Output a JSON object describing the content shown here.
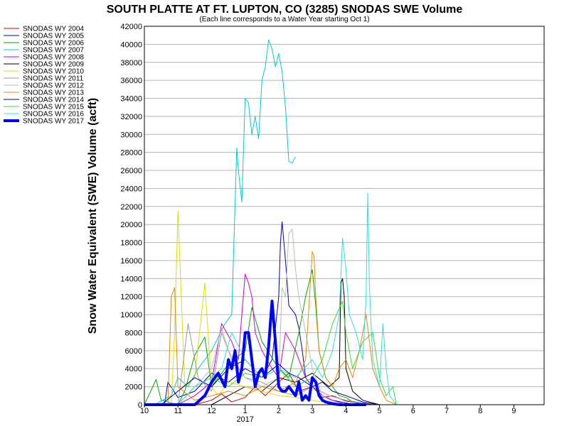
{
  "chart_data": {
    "type": "line",
    "title": "SOUTH PLATTE AT FT. LUPTON, CO (3285) SNODAS SWE Volume",
    "subtitle": "(Each line corresponds to a Water Year starting Oct 1)",
    "ylabel": "Snow Water Equivalent (SWE) Volume (acft)",
    "xlabel": "",
    "ylim": [
      0,
      42000
    ],
    "yticks": [
      0,
      2000,
      4000,
      6000,
      8000,
      10000,
      12000,
      14000,
      16000,
      18000,
      20000,
      22000,
      24000,
      26000,
      28000,
      30000,
      32000,
      34000,
      36000,
      38000,
      40000,
      42000
    ],
    "xlim": [
      10,
      21.9
    ],
    "x_unit": "month of water year (10=Oct ... 21=Sep)",
    "xticks": [
      {
        "value": 10,
        "label": "10"
      },
      {
        "value": 11,
        "label": "11"
      },
      {
        "value": 12,
        "label": "12"
      },
      {
        "value": 13,
        "label": "1"
      },
      {
        "value": 14,
        "label": "2"
      },
      {
        "value": 15,
        "label": "3"
      },
      {
        "value": 16,
        "label": "4"
      },
      {
        "value": 17,
        "label": "5"
      },
      {
        "value": 18,
        "label": "6"
      },
      {
        "value": 19,
        "label": "7"
      },
      {
        "value": 20,
        "label": "8"
      },
      {
        "value": 21,
        "label": "9"
      }
    ],
    "x_secondary_label": {
      "value": 13,
      "label": "2017"
    },
    "grid": true,
    "legend_position": "top-left",
    "series": [
      {
        "name": "SNODAS WY 2004",
        "color": "#cc0000",
        "width": 1,
        "x": [
          10.0,
          11.5,
          12.0,
          12.3,
          12.6,
          13.0,
          13.3,
          13.6,
          14.0,
          14.3,
          14.6,
          15.0,
          15.3,
          15.6,
          16.0,
          16.5,
          17.0
        ],
        "y": [
          0,
          0,
          500,
          1200,
          300,
          800,
          2000,
          1000,
          2500,
          3500,
          1500,
          2000,
          800,
          1000,
          400,
          100,
          0
        ]
      },
      {
        "name": "SNODAS WY 2005",
        "color": "#0000cc",
        "width": 1,
        "x": [
          10.0,
          10.6,
          10.7,
          11.0,
          11.5,
          12.0,
          12.5,
          13.0,
          13.5,
          13.8,
          14.0,
          14.05,
          14.1,
          14.2,
          14.3,
          14.5,
          14.6,
          14.7,
          14.8,
          15.0,
          15.3,
          15.6,
          16.0,
          16.3,
          17.0
        ],
        "y": [
          0,
          0,
          2500,
          800,
          1500,
          3500,
          2500,
          4000,
          3000,
          5000,
          12000,
          18000,
          20300,
          16000,
          11000,
          10000,
          8500,
          6000,
          3000,
          2000,
          1000,
          500,
          200,
          0,
          0
        ]
      },
      {
        "name": "SNODAS WY 2006",
        "color": "#00aa00",
        "width": 1,
        "x": [
          10.0,
          10.35,
          10.5,
          11.0,
          11.2,
          11.5,
          11.8,
          12.0,
          12.5,
          13.0,
          13.2,
          13.5,
          14.0,
          14.3,
          14.6,
          14.8,
          14.9,
          15.0,
          15.1,
          15.2,
          15.4,
          15.6,
          15.8,
          16.0,
          16.2,
          16.6,
          17.0
        ],
        "y": [
          0,
          2800,
          500,
          0,
          1500,
          5500,
          7500,
          2000,
          4500,
          6000,
          10800,
          7000,
          4000,
          3000,
          8000,
          12000,
          13500,
          15000,
          11000,
          6000,
          3000,
          2000,
          1000,
          800,
          300,
          0,
          0
        ]
      },
      {
        "name": "SNODAS WY 2007",
        "color": "#00cccc",
        "width": 1,
        "x": [
          10.0,
          10.3,
          10.8,
          11.0,
          11.3,
          11.6,
          12.0,
          12.4,
          12.6,
          12.75,
          12.8,
          12.9,
          13.0,
          13.1,
          13.2,
          13.3,
          13.4,
          13.5,
          13.6,
          13.7,
          13.8,
          13.9,
          14.0,
          14.1,
          14.2,
          14.3,
          14.4,
          14.5
        ],
        "y": [
          0,
          0,
          1000,
          3000,
          2000,
          4000,
          6000,
          9000,
          10000,
          28500,
          26000,
          22500,
          34000,
          33500,
          30000,
          32000,
          29500,
          36000,
          37500,
          40500,
          39500,
          37500,
          39000,
          37000,
          33000,
          27000,
          26800,
          27500
        ]
      },
      {
        "name": "SNODAS WY 2008",
        "color": "#cc00cc",
        "width": 1,
        "x": [
          10.0,
          11.0,
          11.5,
          12.0,
          12.3,
          12.6,
          12.8,
          12.9,
          13.0,
          13.1,
          13.2,
          13.3,
          13.5,
          13.8,
          14.0,
          14.2,
          14.5,
          14.8,
          15.0,
          15.3,
          15.6,
          16.0
        ],
        "y": [
          0,
          0,
          1000,
          2500,
          9000,
          7000,
          5000,
          10000,
          14500,
          13500,
          12000,
          8000,
          6000,
          4000,
          3000,
          8000,
          6000,
          3000,
          2000,
          1000,
          500,
          0
        ]
      },
      {
        "name": "SNODAS WY 2009",
        "color": "#000000",
        "width": 1,
        "x": [
          10.0,
          12.0,
          12.5,
          13.0,
          13.5,
          14.0,
          14.5,
          15.0,
          15.5,
          15.8,
          15.85,
          15.9,
          15.95,
          16.0,
          16.2,
          16.5,
          17.0
        ],
        "y": [
          0,
          0,
          1000,
          2000,
          1500,
          3000,
          2500,
          3500,
          2000,
          3000,
          13500,
          14000,
          12000,
          4000,
          1500,
          500,
          0
        ]
      },
      {
        "name": "SNODAS WY 2010",
        "color": "#dddd00",
        "width": 1,
        "x": [
          10.0,
          10.8,
          10.9,
          11.0,
          11.1,
          11.2,
          11.5,
          11.8,
          12.0,
          12.2,
          12.5,
          13.0,
          13.5,
          14.0,
          14.5,
          15.0,
          15.5,
          16.0
        ],
        "y": [
          0,
          0,
          8000,
          21500,
          12000,
          2000,
          3000,
          13500,
          2000,
          1000,
          2500,
          2000,
          1500,
          1000,
          800,
          500,
          200,
          0
        ]
      },
      {
        "name": "SNODAS WY 2011",
        "color": "#999999",
        "width": 1,
        "x": [
          10.0,
          11.0,
          11.3,
          11.6,
          12.0,
          12.3,
          12.6,
          13.0,
          13.5,
          14.0,
          14.5,
          15.0,
          15.5,
          16.0,
          16.5,
          17.0
        ],
        "y": [
          0,
          0,
          9000,
          3000,
          1500,
          8000,
          5000,
          3000,
          2500,
          1500,
          1000,
          2000,
          1000,
          500,
          200,
          0
        ]
      },
      {
        "name": "SNODAS WY 2012",
        "color": "#bbbbbb",
        "width": 1,
        "x": [
          10.0,
          11.0,
          11.5,
          12.0,
          12.3,
          12.5,
          13.0,
          13.5,
          14.0,
          14.1,
          14.2,
          14.3,
          14.4,
          14.5,
          14.6,
          14.8,
          15.0,
          15.3,
          15.6,
          16.0
        ],
        "y": [
          0,
          0,
          2000,
          4000,
          8500,
          6000,
          3000,
          2000,
          3000,
          13000,
          12000,
          19000,
          19500,
          15000,
          12000,
          8000,
          4000,
          1000,
          300,
          0
        ]
      },
      {
        "name": "SNODAS WY 2013",
        "color": "#ee8800",
        "width": 1,
        "x": [
          10.0,
          10.7,
          10.8,
          10.9,
          11.0,
          11.5,
          12.0,
          12.5,
          13.0,
          13.5,
          14.0,
          14.5,
          14.8,
          15.0,
          15.05,
          15.1,
          15.2,
          15.4,
          15.6,
          15.8,
          16.0,
          16.2,
          16.4,
          16.6,
          16.8,
          17.0,
          17.2,
          17.5
        ],
        "y": [
          0,
          0,
          12000,
          13000,
          2000,
          500,
          1000,
          1500,
          1000,
          2000,
          1500,
          2500,
          5000,
          17000,
          16500,
          12000,
          6000,
          3000,
          2000,
          4000,
          5000,
          3000,
          6000,
          10000,
          4000,
          2000,
          500,
          0
        ]
      },
      {
        "name": "SNODAS WY 2014",
        "color": "#000088",
        "width": 1,
        "x": [
          10.0,
          10.5,
          11.0,
          11.5,
          12.0,
          12.5,
          13.0,
          13.5,
          14.0,
          14.3,
          14.6,
          15.0,
          15.3,
          15.6,
          16.0,
          16.5,
          17.0
        ],
        "y": [
          0,
          0,
          1500,
          3000,
          2000,
          4000,
          5000,
          3000,
          4500,
          3500,
          3000,
          2000,
          2500,
          1500,
          1000,
          300,
          0
        ]
      },
      {
        "name": "SNODAS WY 2015",
        "color": "#33dd33",
        "width": 1,
        "x": [
          10.0,
          11.0,
          11.5,
          12.0,
          12.5,
          13.0,
          13.5,
          14.0,
          14.5,
          15.0,
          15.3,
          15.6,
          15.9,
          16.0,
          16.2,
          16.5,
          16.8,
          17.0,
          17.2,
          17.4,
          17.5
        ],
        "y": [
          0,
          0,
          2000,
          3000,
          2000,
          3500,
          3000,
          4000,
          2000,
          3000,
          5000,
          9000,
          11500,
          8000,
          4000,
          7000,
          8000,
          3000,
          1000,
          2000,
          0
        ]
      },
      {
        "name": "SNODAS WY 2016",
        "color": "#33dddd",
        "width": 1,
        "x": [
          10.0,
          11.0,
          11.5,
          12.0,
          12.3,
          12.6,
          13.0,
          13.5,
          14.0,
          14.5,
          15.0,
          15.3,
          15.6,
          15.8,
          15.9,
          16.0,
          16.1,
          16.3,
          16.5,
          16.6,
          16.65,
          16.7,
          16.8,
          17.0,
          17.1,
          17.2,
          17.3,
          17.5
        ],
        "y": [
          0,
          0,
          2000,
          3000,
          4000,
          8000,
          5000,
          3000,
          4000,
          3000,
          5000,
          3000,
          6000,
          10000,
          18500,
          15000,
          10000,
          8000,
          5000,
          12000,
          23500,
          13000,
          5000,
          2000,
          9000,
          4000,
          1000,
          0
        ]
      },
      {
        "name": "SNODAS WY 2017",
        "color": "#0000ff",
        "width": 4,
        "x": [
          10.0,
          11.0,
          11.5,
          11.8,
          12.0,
          12.2,
          12.4,
          12.5,
          12.6,
          12.7,
          12.8,
          12.9,
          13.0,
          13.1,
          13.2,
          13.3,
          13.4,
          13.5,
          13.6,
          13.7,
          13.8,
          13.9,
          14.0,
          14.1,
          14.2,
          14.3,
          14.4,
          14.5,
          14.6,
          14.7,
          14.8,
          14.9,
          15.0,
          15.1,
          15.2,
          15.3,
          15.4,
          15.5,
          15.6,
          15.8,
          16.0,
          16.3,
          16.6
        ],
        "y": [
          0,
          0,
          0,
          1000,
          2500,
          3500,
          2000,
          5000,
          4000,
          6000,
          2500,
          4000,
          8000,
          8000,
          5000,
          2000,
          3500,
          4000,
          3000,
          6500,
          11500,
          7000,
          2000,
          1500,
          1500,
          2000,
          1500,
          1000,
          2500,
          500,
          1000,
          500,
          3000,
          2500,
          1000,
          500,
          300,
          200,
          100,
          0,
          0,
          0,
          0
        ]
      }
    ]
  }
}
